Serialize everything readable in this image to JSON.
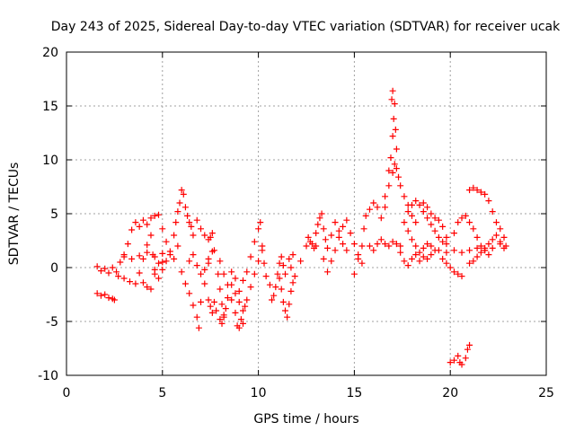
{
  "chart_data": {
    "type": "scatter",
    "title": "Day 243 of 2025, Sidereal Day-to-day VTEC variation (SDTVAR) for receiver ucak",
    "xlabel": "GPS time / hours",
    "ylabel": "SDTVAR / TECUs",
    "xlim": [
      0,
      25
    ],
    "ylim": [
      -10,
      20
    ],
    "xticks": [
      "0",
      "5",
      "10",
      "15",
      "20",
      "25"
    ],
    "yticks": [
      "-10",
      "-5",
      "0",
      "5",
      "10",
      "15",
      "20"
    ],
    "grid": true,
    "marker": "+",
    "color": "#ff0000",
    "series": [
      {
        "name": "ucak",
        "color": "#ff0000",
        "points": [
          [
            1.6,
            0.1
          ],
          [
            1.8,
            -0.3
          ],
          [
            2.0,
            -0.1
          ],
          [
            2.2,
            -0.5
          ],
          [
            2.4,
            0.0
          ],
          [
            2.6,
            -0.4
          ],
          [
            2.8,
            0.5
          ],
          [
            3.0,
            1.2
          ],
          [
            3.2,
            2.2
          ],
          [
            3.4,
            3.5
          ],
          [
            3.6,
            4.2
          ],
          [
            1.6,
            -2.4
          ],
          [
            1.8,
            -2.6
          ],
          [
            2.0,
            -2.5
          ],
          [
            2.2,
            -2.8
          ],
          [
            2.4,
            -2.9
          ],
          [
            2.5,
            -3.0
          ],
          [
            2.7,
            -0.8
          ],
          [
            3.0,
            -1.0
          ],
          [
            3.3,
            -1.3
          ],
          [
            3.6,
            -1.5
          ],
          [
            3.8,
            -0.5
          ],
          [
            4.0,
            0.8
          ],
          [
            4.2,
            2.1
          ],
          [
            4.4,
            3.0
          ],
          [
            4.5,
            1.2
          ],
          [
            4.6,
            -0.2
          ],
          [
            4.8,
            -1.0
          ],
          [
            5.0,
            0.5
          ],
          [
            3.0,
            1.0
          ],
          [
            3.4,
            0.8
          ],
          [
            3.8,
            1.1
          ],
          [
            4.2,
            1.4
          ],
          [
            4.6,
            1.0
          ],
          [
            5.0,
            1.3
          ],
          [
            3.8,
            3.8
          ],
          [
            4.0,
            4.4
          ],
          [
            4.2,
            4.0
          ],
          [
            4.4,
            4.6
          ],
          [
            4.6,
            4.8
          ],
          [
            4.8,
            4.9
          ],
          [
            5.0,
            3.6
          ],
          [
            5.2,
            2.4
          ],
          [
            5.4,
            1.2
          ],
          [
            4.0,
            -1.4
          ],
          [
            4.2,
            -1.8
          ],
          [
            4.4,
            -2.0
          ],
          [
            4.6,
            -0.6
          ],
          [
            4.8,
            0.4
          ],
          [
            5.0,
            -0.2
          ],
          [
            5.2,
            0.6
          ],
          [
            5.4,
            1.5
          ],
          [
            5.6,
            0.8
          ],
          [
            5.8,
            2.0
          ],
          [
            5.6,
            3.0
          ],
          [
            5.7,
            4.2
          ],
          [
            5.8,
            5.2
          ],
          [
            5.9,
            6.0
          ],
          [
            6.0,
            7.2
          ],
          [
            6.1,
            6.8
          ],
          [
            6.2,
            5.6
          ],
          [
            6.3,
            4.8
          ],
          [
            6.4,
            4.2
          ],
          [
            6.5,
            3.8
          ],
          [
            6.6,
            3.0
          ],
          [
            6.8,
            4.4
          ],
          [
            7.0,
            3.6
          ],
          [
            7.2,
            3.0
          ],
          [
            7.4,
            2.6
          ],
          [
            7.6,
            3.2
          ],
          [
            6.0,
            -0.4
          ],
          [
            6.2,
            -1.5
          ],
          [
            6.4,
            -2.4
          ],
          [
            6.6,
            -3.5
          ],
          [
            6.8,
            -4.6
          ],
          [
            6.9,
            -5.6
          ],
          [
            7.0,
            -3.2
          ],
          [
            7.2,
            -1.5
          ],
          [
            7.4,
            0.8
          ],
          [
            7.6,
            1.5
          ],
          [
            6.4,
            0.6
          ],
          [
            6.6,
            1.2
          ],
          [
            6.8,
            0.2
          ],
          [
            7.0,
            -0.6
          ],
          [
            7.2,
            -0.2
          ],
          [
            7.4,
            0.4
          ],
          [
            7.5,
            2.8
          ],
          [
            7.7,
            1.6
          ],
          [
            7.9,
            -0.6
          ],
          [
            8.0,
            -2.0
          ],
          [
            8.1,
            -3.4
          ],
          [
            8.2,
            -4.6
          ],
          [
            8.3,
            -3.8
          ],
          [
            8.4,
            -2.8
          ],
          [
            8.6,
            -1.6
          ],
          [
            8.8,
            -2.4
          ],
          [
            9.0,
            -3.2
          ],
          [
            9.2,
            -4.0
          ],
          [
            9.4,
            -3.0
          ],
          [
            8.0,
            0.6
          ],
          [
            8.2,
            -0.6
          ],
          [
            8.4,
            -1.6
          ],
          [
            8.6,
            -3.0
          ],
          [
            8.8,
            -4.2
          ],
          [
            8.9,
            -5.4
          ],
          [
            9.0,
            -5.6
          ],
          [
            9.1,
            -4.8
          ],
          [
            9.2,
            -5.2
          ],
          [
            9.3,
            -3.6
          ],
          [
            7.8,
            -4.0
          ],
          [
            8.0,
            -4.8
          ],
          [
            8.1,
            -5.2
          ],
          [
            8.2,
            -4.4
          ],
          [
            7.4,
            -3.0
          ],
          [
            7.5,
            -3.6
          ],
          [
            7.6,
            -4.2
          ],
          [
            7.7,
            -3.2
          ],
          [
            8.6,
            -0.4
          ],
          [
            8.8,
            -1.0
          ],
          [
            9.0,
            -2.2
          ],
          [
            9.2,
            -1.2
          ],
          [
            9.4,
            -0.4
          ],
          [
            9.6,
            1.0
          ],
          [
            9.8,
            2.4
          ],
          [
            10.0,
            3.6
          ],
          [
            10.1,
            4.2
          ],
          [
            10.2,
            2.0
          ],
          [
            9.6,
            -1.8
          ],
          [
            9.8,
            -0.6
          ],
          [
            10.0,
            0.6
          ],
          [
            10.2,
            1.6
          ],
          [
            10.3,
            0.4
          ],
          [
            10.4,
            -0.8
          ],
          [
            10.6,
            -1.6
          ],
          [
            10.7,
            -3.0
          ],
          [
            10.8,
            -2.6
          ],
          [
            10.9,
            -1.8
          ],
          [
            11.0,
            -0.6
          ],
          [
            11.1,
            0.4
          ],
          [
            11.2,
            1.0
          ],
          [
            11.3,
            0.2
          ],
          [
            11.1,
            -1.0
          ],
          [
            11.2,
            -2.0
          ],
          [
            11.3,
            -3.2
          ],
          [
            11.4,
            -4.0
          ],
          [
            11.5,
            -4.6
          ],
          [
            11.6,
            -3.4
          ],
          [
            11.7,
            -2.2
          ],
          [
            11.8,
            -1.4
          ],
          [
            11.9,
            -0.8
          ],
          [
            11.4,
            -0.6
          ],
          [
            11.6,
            0.8
          ],
          [
            11.7,
            0.0
          ],
          [
            11.8,
            1.2
          ],
          [
            12.2,
            0.6
          ],
          [
            12.5,
            2.0
          ],
          [
            12.7,
            2.4
          ],
          [
            12.9,
            1.8
          ],
          [
            13.0,
            3.2
          ],
          [
            13.1,
            4.0
          ],
          [
            13.2,
            4.6
          ],
          [
            13.3,
            5.0
          ],
          [
            13.4,
            3.6
          ],
          [
            13.5,
            2.6
          ],
          [
            13.6,
            1.8
          ],
          [
            12.6,
            2.8
          ],
          [
            12.8,
            2.2
          ],
          [
            13.0,
            2.0
          ],
          [
            13.4,
            0.8
          ],
          [
            13.6,
            -0.4
          ],
          [
            13.8,
            0.6
          ],
          [
            14.0,
            1.6
          ],
          [
            14.2,
            2.8
          ],
          [
            14.4,
            3.8
          ],
          [
            14.6,
            4.4
          ],
          [
            14.8,
            3.2
          ],
          [
            15.0,
            2.2
          ],
          [
            15.2,
            1.2
          ],
          [
            15.4,
            0.4
          ],
          [
            13.8,
            3.0
          ],
          [
            14.0,
            4.2
          ],
          [
            14.2,
            3.4
          ],
          [
            14.4,
            2.2
          ],
          [
            14.6,
            1.6
          ],
          [
            15.0,
            -0.6
          ],
          [
            15.2,
            0.8
          ],
          [
            15.4,
            2.0
          ],
          [
            15.5,
            3.6
          ],
          [
            15.6,
            4.8
          ],
          [
            15.8,
            5.4
          ],
          [
            16.0,
            6.0
          ],
          [
            16.2,
            5.6
          ],
          [
            16.4,
            4.6
          ],
          [
            16.6,
            5.6
          ],
          [
            16.8,
            7.6
          ],
          [
            17.0,
            8.8
          ],
          [
            17.1,
            9.6
          ],
          [
            17.2,
            9.2
          ],
          [
            17.3,
            8.4
          ],
          [
            17.4,
            7.6
          ],
          [
            17.6,
            6.6
          ],
          [
            17.8,
            5.8
          ],
          [
            18.0,
            4.8
          ],
          [
            18.2,
            4.2
          ],
          [
            15.8,
            2.0
          ],
          [
            16.0,
            1.6
          ],
          [
            16.2,
            2.2
          ],
          [
            16.4,
            2.6
          ],
          [
            16.6,
            2.2
          ],
          [
            16.8,
            2.0
          ],
          [
            17.0,
            2.4
          ],
          [
            17.2,
            2.2
          ],
          [
            17.4,
            2.0
          ],
          [
            16.6,
            6.6
          ],
          [
            16.8,
            9.0
          ],
          [
            16.9,
            10.2
          ],
          [
            17.0,
            12.2
          ],
          [
            17.05,
            13.8
          ],
          [
            17.1,
            15.2
          ],
          [
            17.0,
            16.4
          ],
          [
            16.95,
            15.6
          ],
          [
            17.15,
            12.8
          ],
          [
            17.2,
            11.0
          ],
          [
            17.4,
            1.4
          ],
          [
            17.6,
            0.6
          ],
          [
            17.8,
            0.2
          ],
          [
            18.0,
            0.8
          ],
          [
            18.2,
            1.2
          ],
          [
            18.4,
            0.6
          ],
          [
            18.6,
            1.0
          ],
          [
            18.8,
            0.8
          ],
          [
            19.0,
            1.2
          ],
          [
            19.2,
            1.6
          ],
          [
            17.6,
            4.2
          ],
          [
            17.8,
            3.4
          ],
          [
            18.0,
            2.6
          ],
          [
            18.2,
            2.0
          ],
          [
            18.4,
            1.4
          ],
          [
            18.6,
            1.8
          ],
          [
            18.8,
            2.2
          ],
          [
            19.0,
            2.0
          ],
          [
            17.8,
            5.2
          ],
          [
            18.0,
            5.8
          ],
          [
            18.2,
            6.2
          ],
          [
            18.4,
            5.8
          ],
          [
            18.6,
            5.2
          ],
          [
            18.8,
            4.6
          ],
          [
            19.0,
            4.0
          ],
          [
            19.2,
            3.4
          ],
          [
            19.4,
            2.8
          ],
          [
            19.6,
            2.4
          ],
          [
            19.8,
            2.2
          ],
          [
            18.6,
            6.0
          ],
          [
            18.8,
            5.6
          ],
          [
            19.0,
            5.0
          ],
          [
            19.2,
            4.6
          ],
          [
            19.4,
            4.4
          ],
          [
            19.6,
            3.8
          ],
          [
            19.8,
            2.8
          ],
          [
            19.6,
            0.8
          ],
          [
            19.8,
            0.4
          ],
          [
            20.0,
            0.0
          ],
          [
            20.2,
            -0.4
          ],
          [
            20.4,
            -0.6
          ],
          [
            20.6,
            -0.8
          ],
          [
            19.4,
            1.6
          ],
          [
            19.8,
            1.4
          ],
          [
            20.2,
            1.6
          ],
          [
            20.6,
            1.4
          ],
          [
            21.0,
            1.6
          ],
          [
            21.4,
            1.8
          ],
          [
            21.8,
            1.6
          ],
          [
            22.2,
            1.8
          ],
          [
            22.6,
            2.2
          ],
          [
            22.8,
            1.8
          ],
          [
            20.2,
            3.2
          ],
          [
            20.4,
            4.2
          ],
          [
            20.6,
            4.6
          ],
          [
            20.8,
            4.8
          ],
          [
            21.0,
            4.2
          ],
          [
            21.2,
            3.6
          ],
          [
            21.4,
            2.8
          ],
          [
            21.6,
            2.0
          ],
          [
            21.8,
            1.6
          ],
          [
            22.0,
            1.2
          ],
          [
            21.0,
            7.2
          ],
          [
            21.2,
            7.4
          ],
          [
            21.4,
            7.2
          ],
          [
            21.6,
            7.0
          ],
          [
            21.8,
            6.8
          ],
          [
            22.0,
            6.2
          ],
          [
            22.2,
            5.2
          ],
          [
            22.4,
            4.2
          ],
          [
            22.6,
            3.6
          ],
          [
            22.8,
            2.8
          ],
          [
            22.9,
            2.0
          ],
          [
            21.0,
            0.4
          ],
          [
            21.2,
            0.6
          ],
          [
            21.4,
            1.0
          ],
          [
            21.6,
            1.4
          ],
          [
            21.8,
            1.8
          ],
          [
            22.0,
            2.2
          ],
          [
            22.2,
            2.6
          ],
          [
            22.4,
            3.0
          ],
          [
            22.6,
            2.4
          ],
          [
            20.0,
            -8.8
          ],
          [
            20.2,
            -8.6
          ],
          [
            20.4,
            -8.2
          ],
          [
            20.5,
            -8.8
          ],
          [
            20.6,
            -9.0
          ],
          [
            20.8,
            -8.4
          ],
          [
            20.9,
            -7.6
          ],
          [
            21.0,
            -7.2
          ]
        ]
      }
    ]
  }
}
